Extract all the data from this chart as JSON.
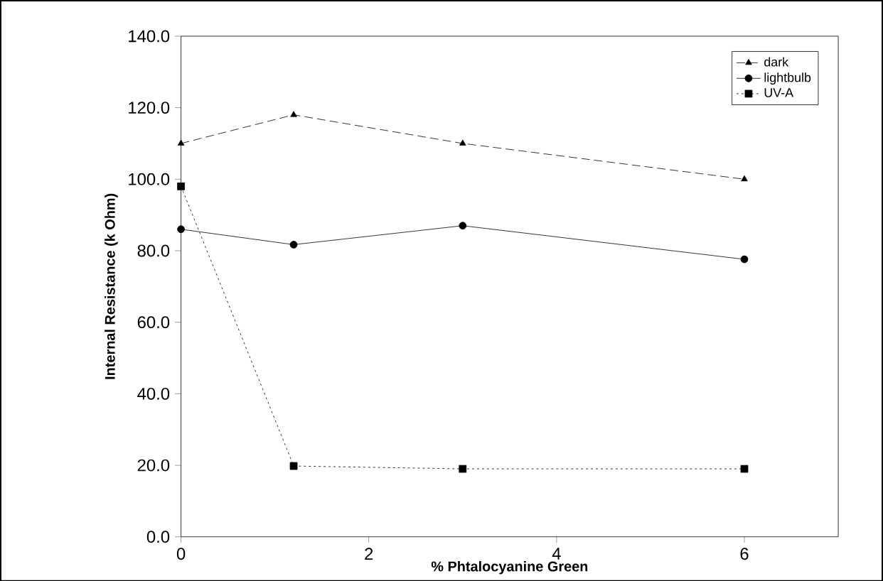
{
  "chart_data": {
    "type": "line",
    "xlabel": "% Phtalocyanine Green",
    "ylabel": "Internal Resistance (k Ohm)",
    "x": [
      0,
      1.2,
      3,
      6
    ],
    "series": [
      {
        "name": "dark",
        "color": "#000000",
        "marker": "triangle",
        "line_style": "dashed",
        "values": [
          110,
          118,
          110,
          100
        ]
      },
      {
        "name": "lightbulb",
        "color": "#000000",
        "marker": "circle",
        "line_style": "solid",
        "values": [
          86,
          81.7,
          87,
          77.6
        ]
      },
      {
        "name": "UV-A",
        "color": "#000000",
        "marker": "square",
        "line_style": "dotted",
        "values": [
          98,
          19.8,
          19,
          19
        ]
      }
    ],
    "xlim": [
      0,
      7
    ],
    "xticks": [
      0,
      2,
      4,
      6
    ],
    "ylim": [
      0,
      140
    ],
    "yticks": [
      {
        "value": 0,
        "label": "0.0"
      },
      {
        "value": 20,
        "label": "20.0"
      },
      {
        "value": 40,
        "label": "40.0"
      },
      {
        "value": 60,
        "label": "60.0"
      },
      {
        "value": 80,
        "label": "80.0"
      },
      {
        "value": 100,
        "label": "100.0"
      },
      {
        "value": 120,
        "label": "120.0"
      },
      {
        "value": 140,
        "label": "140.0"
      }
    ],
    "grid": false,
    "legend": "top right"
  }
}
